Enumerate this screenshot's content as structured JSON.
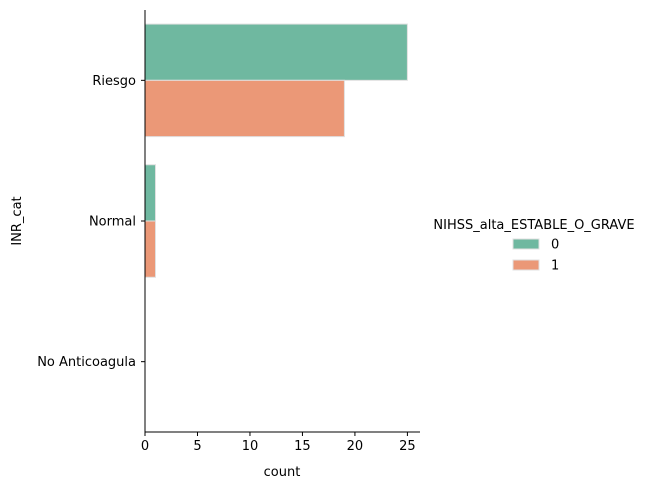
{
  "chart_data": {
    "type": "bar",
    "orientation": "horizontal",
    "categories": [
      "Riesgo",
      "Normal",
      "No Anticoagula"
    ],
    "series": [
      {
        "name": "0",
        "values": [
          25,
          1,
          0
        ],
        "color": "#6fb8a0"
      },
      {
        "name": "1",
        "values": [
          19,
          1,
          0
        ],
        "color": "#eb9877"
      }
    ],
    "xlabel": "count",
    "ylabel": "INR_cat",
    "xlim": [
      0,
      26.2
    ],
    "xticks": [
      0,
      5,
      10,
      15,
      20,
      25
    ],
    "grid": false,
    "legend": {
      "title": "NIHSS_alta_ESTABLE_O_GRAVE",
      "placement": "right",
      "entries": [
        "0",
        "1"
      ]
    }
  }
}
